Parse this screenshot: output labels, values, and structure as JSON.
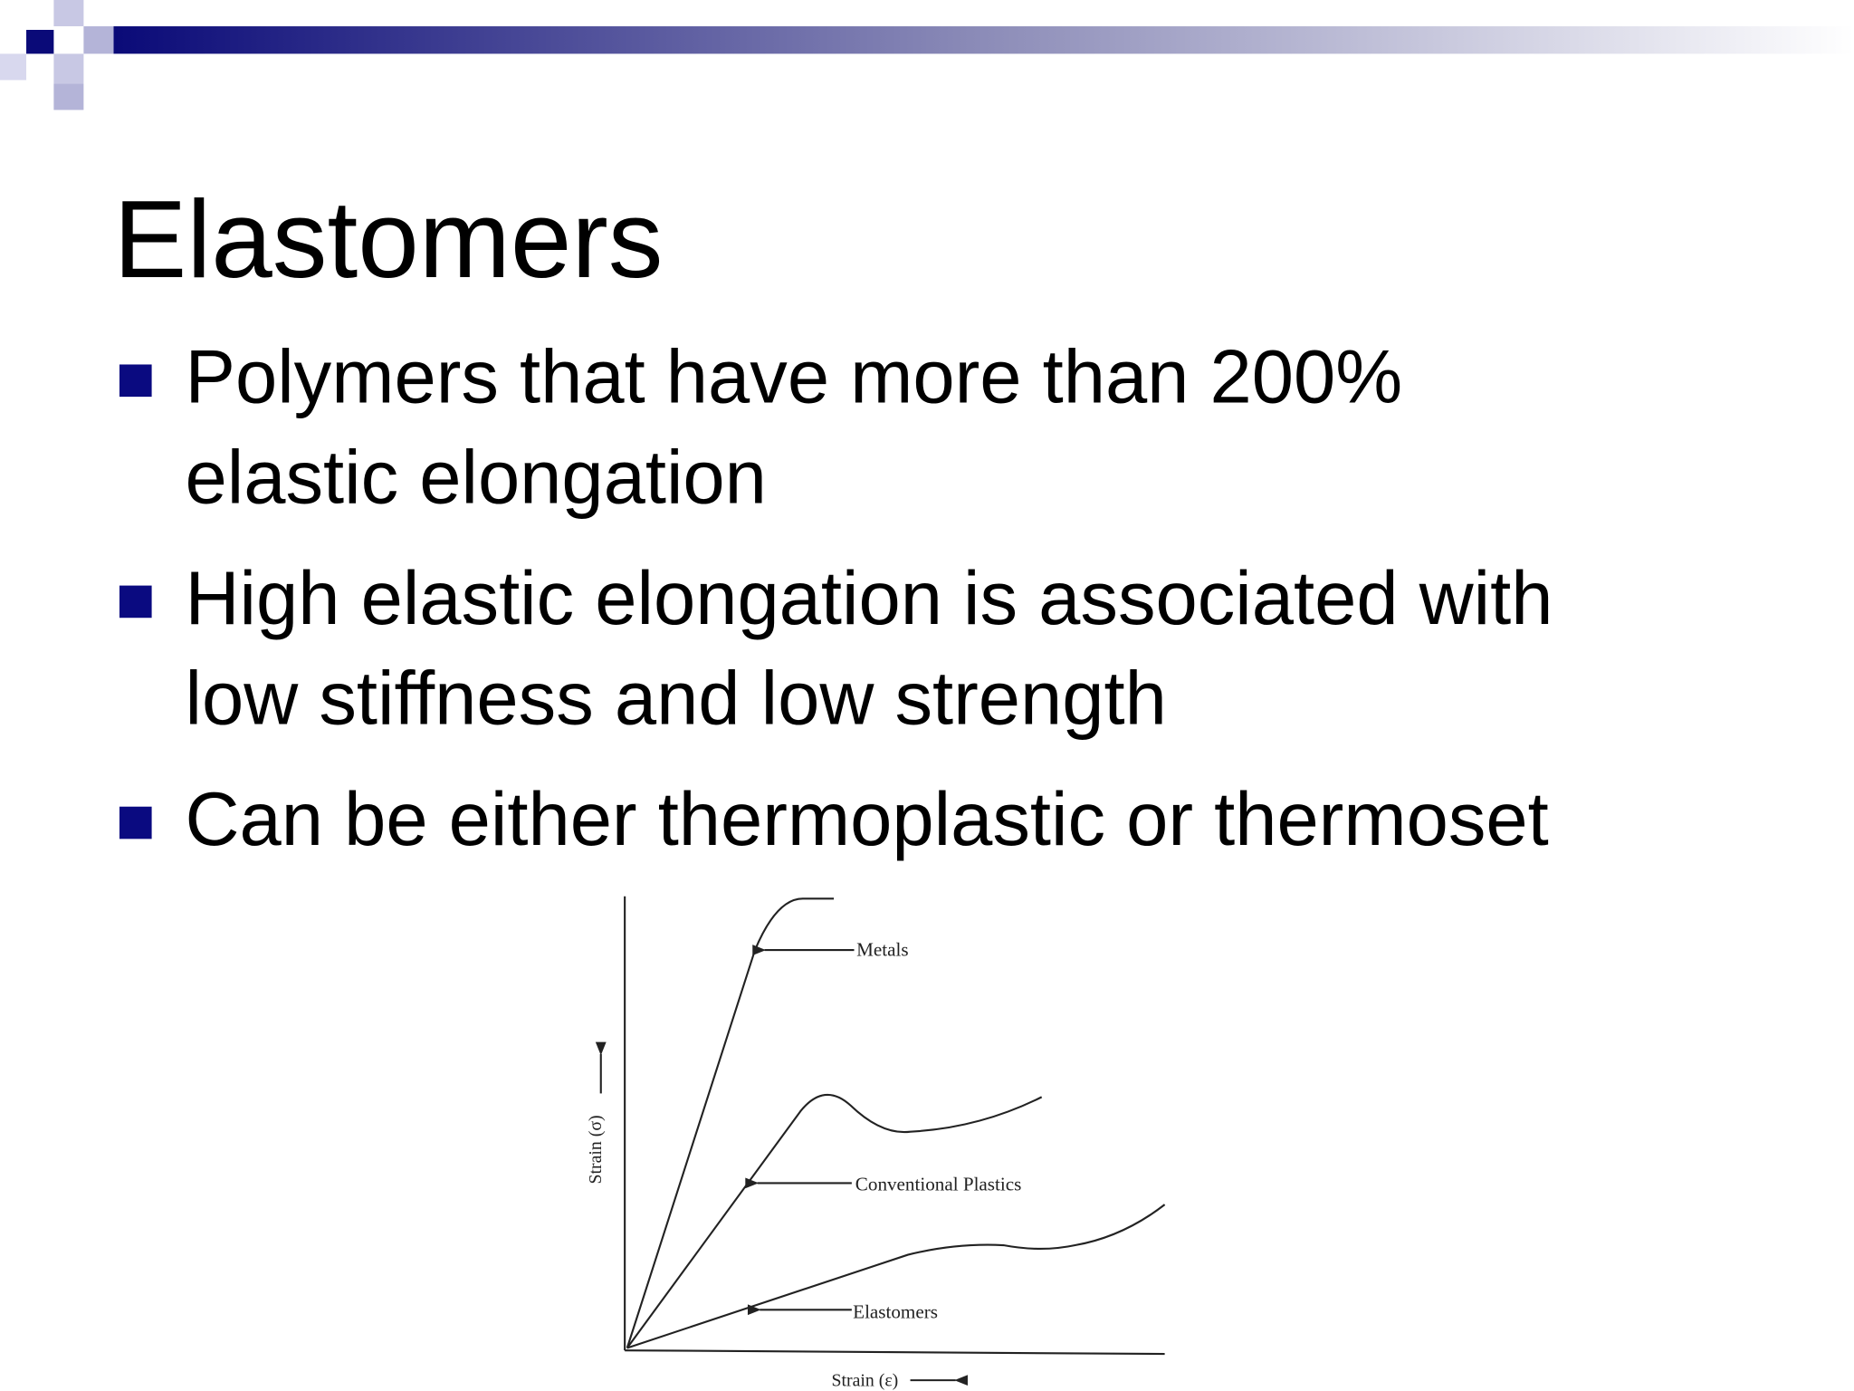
{
  "slide": {
    "title": "Elastomers",
    "bullets": [
      [
        "Polymers that have more than 200%",
        "elastic elongation"
      ],
      [
        "High elastic elongation is associated with",
        "low stiffness and low strength"
      ],
      [
        "Can be either thermoplastic or thermoset"
      ]
    ],
    "figure": {
      "y_label": "Strain (σ)",
      "x_label": "Strain (ε)",
      "curves": [
        "Metals",
        "Conventional Plastics",
        "Elastomers"
      ]
    }
  }
}
